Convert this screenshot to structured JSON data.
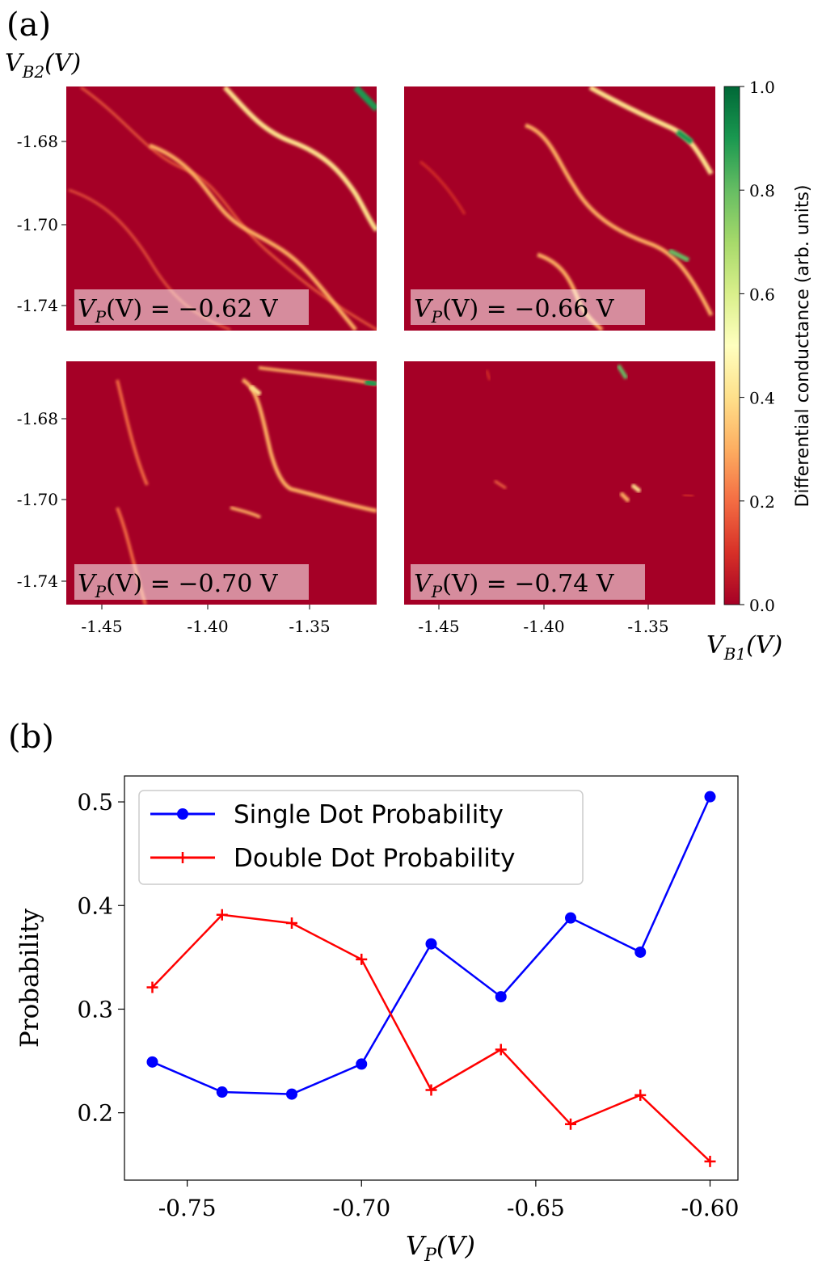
{
  "panel_a": {
    "label": "(a)",
    "ylabel_sym": "V",
    "ylabel_sub": "B2",
    "ylabel_unit": "(V)",
    "xlabel_sym": "V",
    "xlabel_sub": "B1",
    "xlabel_unit": "(V)",
    "colorbar_label": "Differential conductance (arb. units)",
    "colorbar_ticks": [
      "0.0",
      "0.2",
      "0.4",
      "0.6",
      "0.8",
      "1.0"
    ],
    "colorbar_colors": [
      "#a50026",
      "#d73027",
      "#f46d43",
      "#fdae61",
      "#fee08b",
      "#ffffbf",
      "#d9ef8b",
      "#a6d96a",
      "#66bd63",
      "#1a9850",
      "#006837"
    ],
    "x_ticks": [
      "-1.45",
      "-1.40",
      "-1.35"
    ],
    "y_ticks": [
      "-1.68",
      "-1.70",
      "-1.74"
    ],
    "subplots": [
      {
        "annotation_sym": "V",
        "annotation_sub": "P",
        "annotation_text": "(V) = −0.62 V",
        "vp": -0.62
      },
      {
        "annotation_sym": "V",
        "annotation_sub": "P",
        "annotation_text": "(V) = −0.66 V",
        "vp": -0.66
      },
      {
        "annotation_sym": "V",
        "annotation_sub": "P",
        "annotation_text": "(V) = −0.70 V",
        "vp": -0.7
      },
      {
        "annotation_sym": "V",
        "annotation_sub": "P",
        "annotation_text": "(V) = −0.74 V",
        "vp": -0.74
      }
    ]
  },
  "chart_data": {
    "type": "line",
    "panel_label": "(b)",
    "xlabel_sym": "V",
    "xlabel_sub": "P",
    "xlabel_unit": "(V)",
    "ylabel": "Probability",
    "xlim": [
      -0.768,
      -0.592
    ],
    "ylim": [
      0.135,
      0.525
    ],
    "x_ticks": [
      -0.75,
      -0.7,
      -0.65,
      -0.6
    ],
    "x_tick_labels": [
      "-0.75",
      "-0.70",
      "-0.65",
      "-0.60"
    ],
    "y_ticks": [
      0.2,
      0.3,
      0.4,
      0.5
    ],
    "y_tick_labels": [
      "0.2",
      "0.3",
      "0.4",
      "0.5"
    ],
    "legend_position": "top-left",
    "x": [
      -0.76,
      -0.74,
      -0.72,
      -0.7,
      -0.68,
      -0.66,
      -0.64,
      -0.62,
      -0.6
    ],
    "series": [
      {
        "name": "Single Dot Probability",
        "color": "#0000ff",
        "marker": "circle",
        "values": [
          0.249,
          0.22,
          0.218,
          0.247,
          0.363,
          0.312,
          0.388,
          0.355,
          0.505
        ]
      },
      {
        "name": "Double Dot Probability",
        "color": "#ff0000",
        "marker": "plus",
        "values": [
          0.321,
          0.391,
          0.383,
          0.348,
          0.222,
          0.261,
          0.189,
          0.217,
          0.153
        ]
      }
    ]
  }
}
